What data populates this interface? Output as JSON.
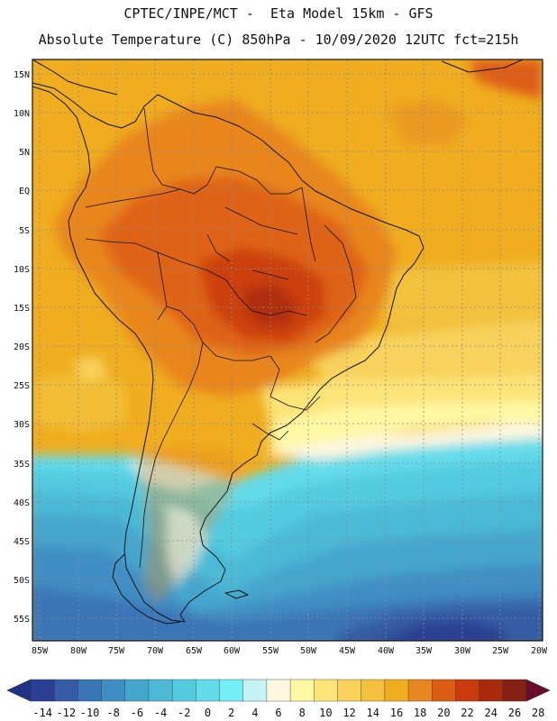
{
  "header": {
    "title_line1": "CPTEC/INPE/MCT -  Eta Model 15km - GFS",
    "title_line2": "Absolute Temperature (C) 850hPa - 10/09/2020 12UTC fct=215h"
  },
  "map": {
    "lat_labels": [
      "15N",
      "10N",
      "5N",
      "EQ",
      "5S",
      "10S",
      "15S",
      "20S",
      "25S",
      "30S",
      "35S",
      "40S",
      "45S",
      "50S",
      "55S"
    ],
    "lon_labels": [
      "85W",
      "80W",
      "75W",
      "70W",
      "65W",
      "60W",
      "55W",
      "50W",
      "45W",
      "40W",
      "35W",
      "30W",
      "25W",
      "20W"
    ]
  },
  "colorbar": {
    "labels": [
      "-14",
      "-12",
      "-10",
      "-8",
      "-6",
      "-4",
      "-2",
      "0",
      "2",
      "4",
      "6",
      "8",
      "10",
      "12",
      "14",
      "16",
      "18",
      "20",
      "22",
      "24",
      "26",
      "28"
    ],
    "colors": [
      "#2a3f91",
      "#345ba4",
      "#3a75b5",
      "#3f8ec3",
      "#45a6cd",
      "#4cbad6",
      "#53cbe0",
      "#63dcea",
      "#72f0f6",
      "#c6f3f6",
      "#fdf7e0",
      "#fff8a3",
      "#fde478",
      "#f8d25b",
      "#f2c23c",
      "#efad1f",
      "#e8861f",
      "#dd5d13",
      "#c93a0d",
      "#a82a0d",
      "#862015"
    ],
    "left_arrow_color": "#1f3285",
    "right_arrow_color": "#6a0b2a"
  }
}
